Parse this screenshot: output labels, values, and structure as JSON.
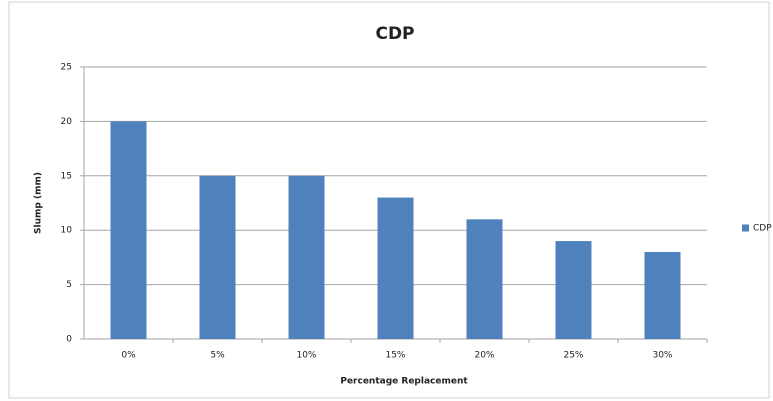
{
  "chart_data": {
    "type": "bar",
    "title": "CDP",
    "categories": [
      "0%",
      "5%",
      "10%",
      "15%",
      "20%",
      "25%",
      "30%"
    ],
    "series": [
      {
        "name": "CDP",
        "color": "#4f81bd",
        "values": [
          20,
          15,
          15,
          13,
          11,
          9,
          8
        ]
      }
    ],
    "x_label": "Percentage Replacement",
    "y_label": "Slump (mm)",
    "ylim": [
      0,
      25
    ],
    "yticks": [
      0,
      5,
      10,
      15,
      20,
      25
    ],
    "grid": true,
    "legend": "right"
  }
}
